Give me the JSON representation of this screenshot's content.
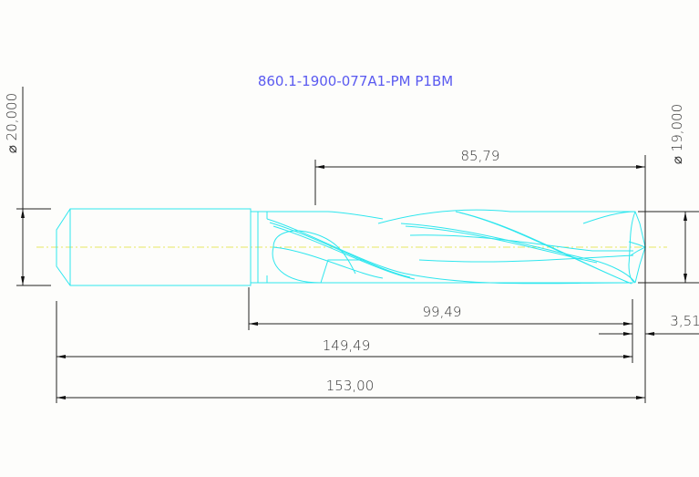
{
  "title": "860.1-1900-077A1-PM P1BM",
  "dimensions": {
    "shank_diameter": "⌀ 20,000",
    "drill_diameter": "⌀ 19,000",
    "flute_length": "85,79",
    "body_length": "99,49",
    "tip_length": "3,51",
    "length_to_corner": "149,49",
    "overall_length": "153,00"
  },
  "colors": {
    "tool": "#2ee6ee",
    "centerline": "#e8e860",
    "title": "#5a5af0",
    "dimension": "#222222"
  }
}
